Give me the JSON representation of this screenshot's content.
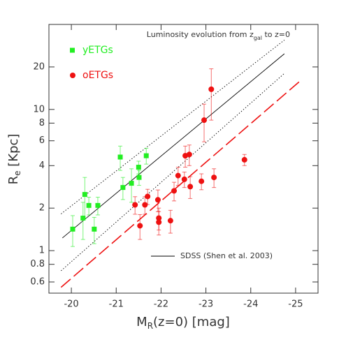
{
  "chart_data": {
    "type": "scatter",
    "title_parts": [
      "Luminosity evolution from z",
      "gal",
      " to z=0"
    ],
    "x_label_parts": [
      "M",
      "R",
      "(z=0) [mag]"
    ],
    "y_label_parts": [
      "R",
      "e",
      " [Kpc]"
    ],
    "xlim": [
      -19.5,
      -25.5
    ],
    "ylim": [
      0.5,
      40
    ],
    "y_log": true,
    "xticks": [
      -20,
      -21,
      -22,
      -23,
      -24,
      -25
    ],
    "yticks": [
      0.6,
      0.8,
      1,
      2,
      4,
      6,
      8,
      10,
      20
    ],
    "series": [
      {
        "name": "yETGs",
        "color": "#22ee22",
        "marker": "square",
        "x": [
          -20.03,
          -20.26,
          -20.3,
          -20.39,
          -20.51,
          -20.59,
          -21.09,
          -21.15,
          -21.34,
          -21.5,
          -21.51,
          -21.67
        ],
        "values": [
          1.42,
          1.7,
          2.5,
          2.09,
          1.42,
          2.09,
          4.6,
          2.8,
          3.0,
          3.9,
          3.3,
          4.7
        ],
        "errors": [
          0.35,
          0.5,
          0.8,
          0.3,
          0.3,
          0.3,
          0.9,
          0.5,
          0.8,
          0.4,
          0.4,
          0.6
        ]
      },
      {
        "name": "oETGs",
        "color": "#ee1111",
        "marker": "circle",
        "x": [
          -21.42,
          -21.53,
          -21.64,
          -21.7,
          -21.93,
          -21.95,
          -21.95,
          -22.21,
          -22.29,
          -22.38,
          -22.52,
          -22.54,
          -22.63,
          -22.65,
          -22.9,
          -22.96,
          -23.12,
          -23.18,
          -23.86
        ],
        "values": [
          2.11,
          1.5,
          2.11,
          2.42,
          2.29,
          1.7,
          1.59,
          1.63,
          2.65,
          3.4,
          3.2,
          4.7,
          4.8,
          2.84,
          3.1,
          8.4,
          13.9,
          3.3,
          4.4
        ],
        "errors": [
          0.3,
          0.3,
          0.3,
          0.3,
          0.4,
          0.3,
          0.3,
          0.3,
          0.4,
          0.5,
          0.4,
          0.8,
          0.8,
          0.5,
          0.4,
          2.5,
          5.5,
          0.5,
          0.4
        ]
      }
    ],
    "lines": [
      {
        "name": "SDSS (Shen et al. 2003)",
        "color": "#000000",
        "style": "solid",
        "x": [
          -19.8,
          -24.75
        ],
        "values": [
          1.23,
          24.8
        ]
      },
      {
        "color": "#000000",
        "style": "dotted",
        "x": [
          -19.77,
          -24.75
        ],
        "values": [
          1.82,
          31
        ]
      },
      {
        "color": "#000000",
        "style": "dotted",
        "x": [
          -19.77,
          -24.75
        ],
        "values": [
          0.72,
          18
        ]
      },
      {
        "color": "#ee1111",
        "style": "dashed",
        "x": [
          -19.77,
          -25.12
        ],
        "values": [
          0.55,
          16.1
        ]
      }
    ]
  }
}
